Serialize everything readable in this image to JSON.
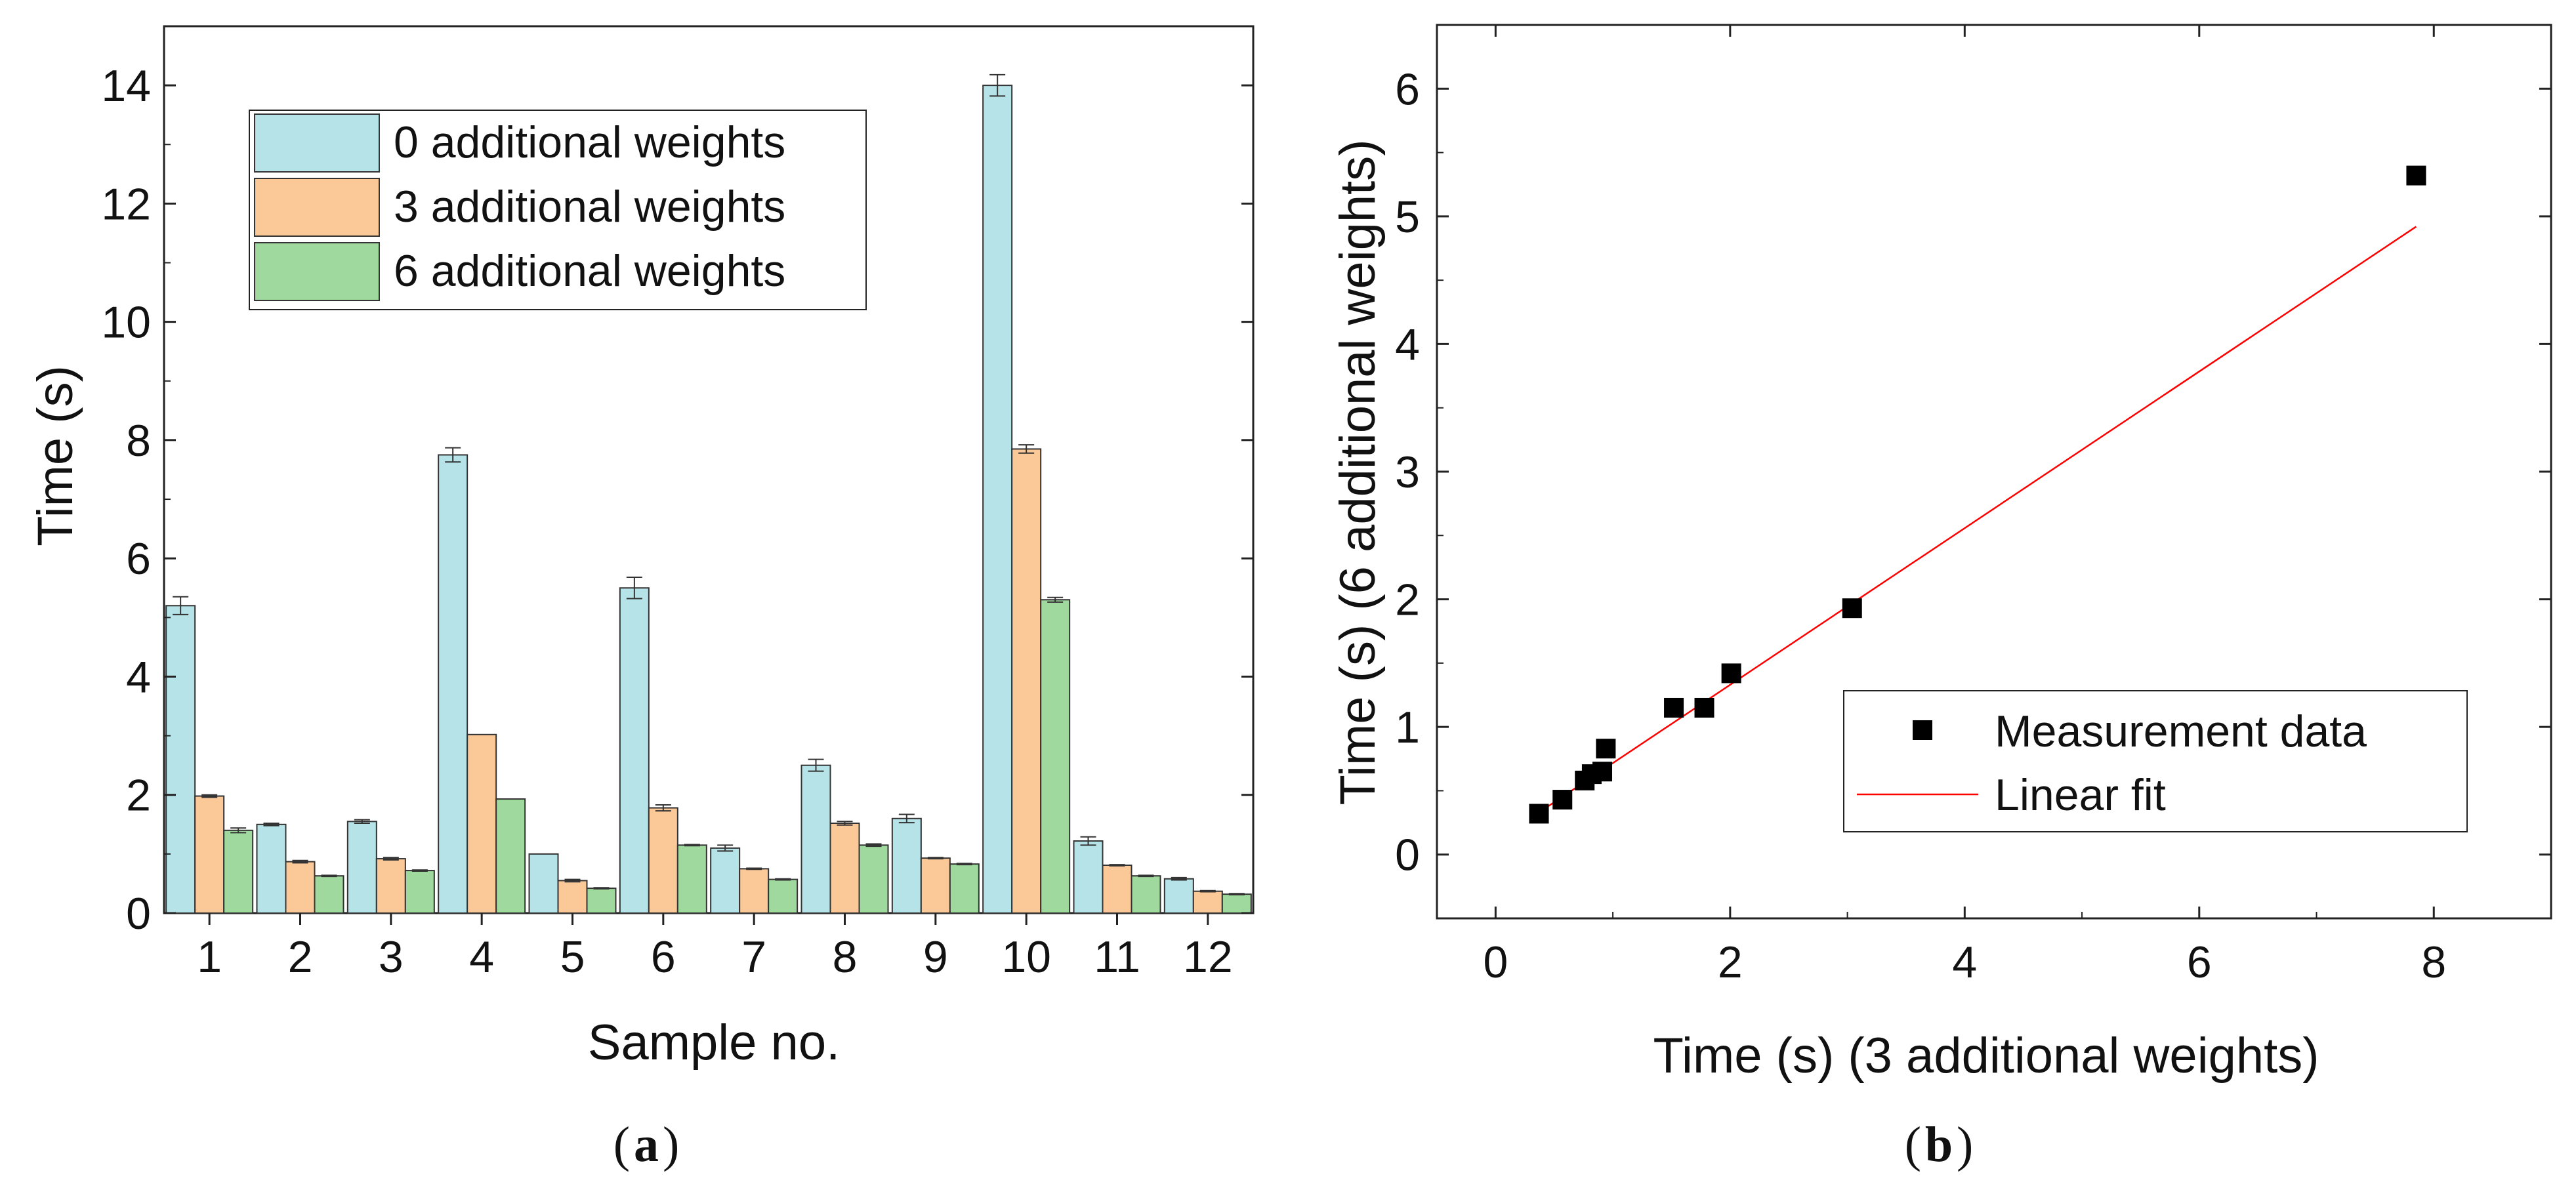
{
  "chart_data": [
    {
      "type": "bar",
      "panel_label": "a",
      "xlabel": "Sample no.",
      "ylabel": "Time (s)",
      "categories": [
        "1",
        "2",
        "3",
        "4",
        "5",
        "6",
        "7",
        "8",
        "9",
        "10",
        "11",
        "12"
      ],
      "ylim": [
        0,
        15
      ],
      "yticks": [
        "0",
        "2",
        "4",
        "6",
        "8",
        "10",
        "12",
        "14"
      ],
      "legend_position": "top-center",
      "series": [
        {
          "name": "0 additional weights",
          "color": "#b5e3e8",
          "values": [
            5.2,
            1.5,
            1.55,
            7.75,
            1.0,
            5.5,
            1.1,
            2.5,
            1.6,
            14.0,
            1.22,
            0.58
          ],
          "errors": [
            0.15,
            0.02,
            0.03,
            0.12,
            0.0,
            0.18,
            0.05,
            0.1,
            0.07,
            0.18,
            0.07,
            0.02
          ]
        },
        {
          "name": "3 additional weights",
          "color": "#fbc898",
          "values": [
            1.98,
            0.87,
            0.92,
            3.02,
            0.55,
            1.78,
            0.75,
            1.52,
            0.93,
            7.85,
            0.81,
            0.37
          ],
          "errors": [
            0.02,
            0.02,
            0.02,
            0.0,
            0.02,
            0.05,
            0.01,
            0.03,
            0.01,
            0.07,
            0.01,
            0.01
          ]
        },
        {
          "name": "6 additional weights",
          "color": "#9fd99d",
          "values": [
            1.4,
            0.63,
            0.72,
            1.93,
            0.42,
            1.15,
            0.57,
            1.15,
            0.83,
            5.3,
            0.63,
            0.32
          ],
          "errors": [
            0.04,
            0.01,
            0.01,
            0.0,
            0.01,
            0.01,
            0.01,
            0.02,
            0.01,
            0.04,
            0.01,
            0.01
          ]
        }
      ]
    },
    {
      "type": "scatter",
      "panel_label": "b",
      "xlabel": "Time (s) (3 additional weights)",
      "ylabel": "Time (s)  (6 additional weights)",
      "xlim": [
        -0.5,
        9
      ],
      "ylim": [
        -0.5,
        6.5
      ],
      "xticks": [
        "0",
        "2",
        "4",
        "6",
        "8"
      ],
      "yticks": [
        "0",
        "1",
        "2",
        "3",
        "4",
        "5",
        "6"
      ],
      "legend_position": "bottom-right",
      "series": [
        {
          "name": "Measurement data",
          "color": "#000000",
          "x": [
            0.37,
            0.57,
            0.76,
            0.82,
            0.91,
            0.94,
            1.52,
            1.78,
            2.01,
            3.04,
            7.85
          ],
          "y": [
            0.32,
            0.43,
            0.58,
            0.63,
            0.65,
            0.83,
            1.15,
            1.15,
            1.42,
            1.93,
            5.32
          ]
        },
        {
          "name": "Linear fit",
          "color": "#ff0000",
          "x": [
            0.37,
            7.85
          ],
          "y": [
            0.33,
            4.92
          ]
        }
      ]
    }
  ]
}
